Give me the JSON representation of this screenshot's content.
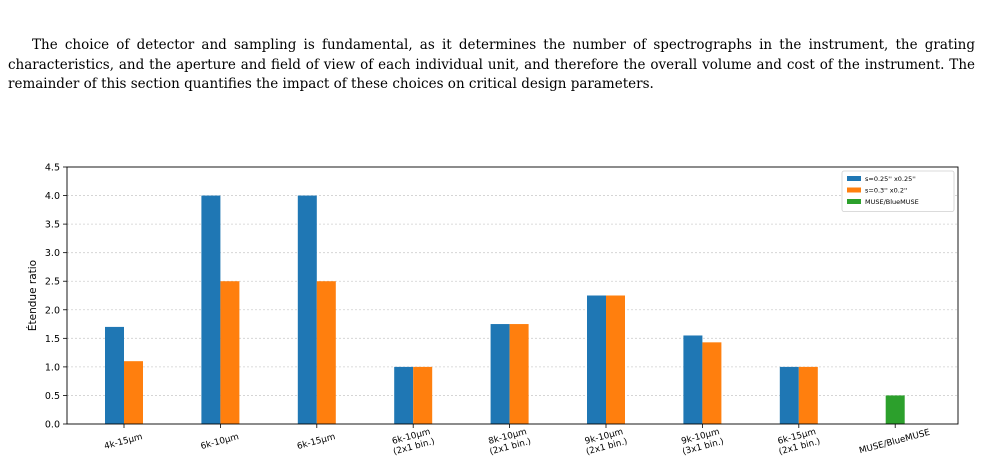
{
  "document": {
    "partial_top_line": "",
    "paragraph": "The choice of detector and sampling is fundamental, as it determines the number of spectrographs in the instrument, the grating characteristics, and the aperture and field of view of each individual unit, and therefore the overall volume and cost of the instrument. The remainder of this section quantifies the impact of these choices on critical design parameters."
  },
  "chart_data": {
    "type": "bar",
    "title": "",
    "xlabel": "",
    "ylabel": "Étendue ratio",
    "ylim": [
      0,
      4.5
    ],
    "yticks": [
      "0.0",
      "0.5",
      "1.0",
      "1.5",
      "2.0",
      "2.5",
      "3.0",
      "3.5",
      "4.0",
      "4.5"
    ],
    "grid": true,
    "legend_position": "top-right",
    "categories": [
      [
        "4k-15µm"
      ],
      [
        "6k-10µm"
      ],
      [
        "6k-15µm"
      ],
      [
        "6k-10µm",
        "(2x1 bin.)"
      ],
      [
        "8k-10µm",
        "(2x1 bin.)"
      ],
      [
        "9k-10µm",
        "(2x1 bin.)"
      ],
      [
        "9k-10µm",
        "(3x1 bin.)"
      ],
      [
        "6k-15µm",
        "(2x1 bin.)"
      ],
      [
        "MUSE/BlueMUSE"
      ]
    ],
    "series": [
      {
        "name": "s=0.25'' x0.25''",
        "color": "#1f77b4",
        "values": [
          1.7,
          4.0,
          4.0,
          1.0,
          1.75,
          2.25,
          1.55,
          1.0,
          null
        ]
      },
      {
        "name": "s=0.3'' x0.2''",
        "color": "#ff7f0e",
        "values": [
          1.1,
          2.5,
          2.5,
          1.0,
          1.75,
          2.25,
          1.43,
          1.0,
          null
        ]
      },
      {
        "name": "MUSE/BlueMUSE",
        "color": "#2ca02c",
        "values": [
          null,
          null,
          null,
          null,
          null,
          null,
          null,
          null,
          0.5
        ]
      }
    ]
  }
}
